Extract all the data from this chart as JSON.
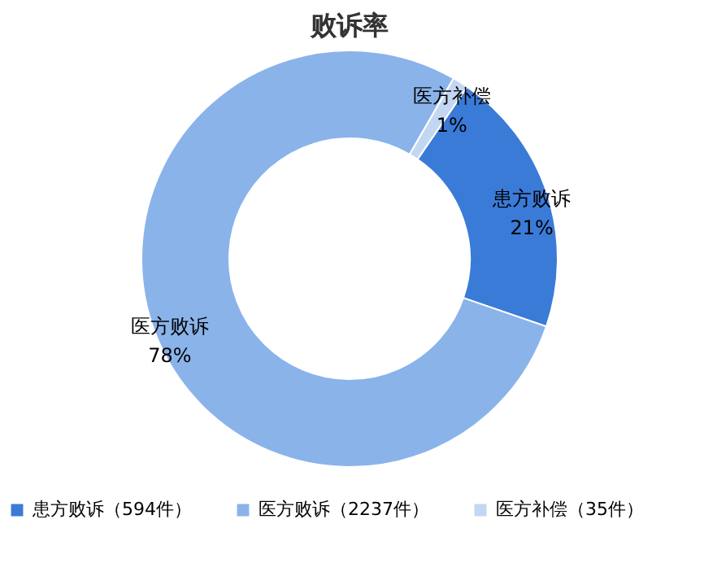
{
  "chart_data": {
    "type": "donut",
    "title": "败诉率",
    "categories": [
      "患方败诉（594件）",
      "医方败诉（2237件）",
      "医方补偿（35件）"
    ],
    "values": [
      594,
      2237,
      35
    ],
    "colors": [
      "#3a7bd8",
      "#8ab3ea",
      "#c3d7f3"
    ],
    "value_labels": [
      "患方败诉\n21%",
      "医方败诉\n78%",
      "医方补偿\n1%"
    ],
    "legend": "bottom"
  }
}
